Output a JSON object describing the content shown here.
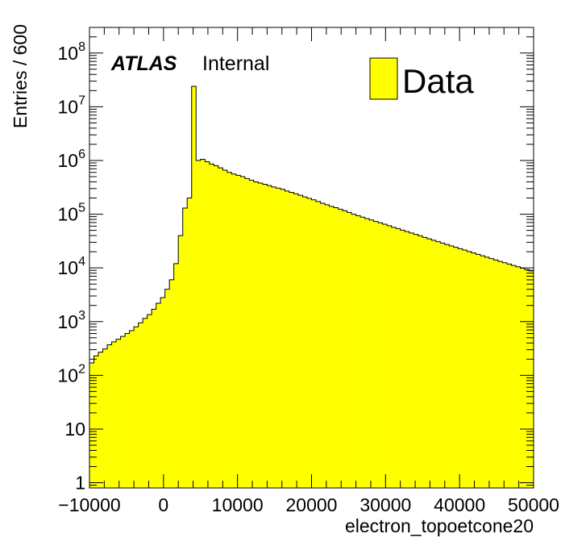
{
  "chart_data": {
    "type": "bar",
    "style": "filled-histogram",
    "xlabel": "electron_topoetcone20",
    "ylabel": "Entries / 600",
    "x_range": [
      -10000,
      50000
    ],
    "bin_width": 600,
    "y_scale": "log",
    "y_range": [
      0.8,
      300000000.0
    ],
    "x_ticks": [
      {
        "value": -10000,
        "label": "−10000"
      },
      {
        "value": 0,
        "label": "0"
      },
      {
        "value": 10000,
        "label": "10000"
      },
      {
        "value": 20000,
        "label": "20000"
      },
      {
        "value": 30000,
        "label": "30000"
      },
      {
        "value": 40000,
        "label": "40000"
      },
      {
        "value": 50000,
        "label": "50000"
      }
    ],
    "y_ticks": [
      {
        "value": 1,
        "base": "1",
        "exp": ""
      },
      {
        "value": 10,
        "base": "10",
        "exp": ""
      },
      {
        "value": 100,
        "base": "10",
        "exp": "2"
      },
      {
        "value": 1000,
        "base": "10",
        "exp": "3"
      },
      {
        "value": 10000,
        "base": "10",
        "exp": "4"
      },
      {
        "value": 100000,
        "base": "10",
        "exp": "5"
      },
      {
        "value": 1000000,
        "base": "10",
        "exp": "6"
      },
      {
        "value": 10000000,
        "base": "10",
        "exp": "7"
      },
      {
        "value": 100000000,
        "base": "10",
        "exp": "8"
      }
    ],
    "label_atlas": "ATLAS",
    "label_status": "Internal",
    "legend": {
      "entry": "Data",
      "position": "top-right",
      "fill": "#ffff00"
    },
    "fill_color": "#ffff00",
    "line_color": "#000000",
    "grid": false,
    "series": [
      {
        "values": [
          170,
          230,
          270,
          310,
          370,
          420,
          470,
          530,
          600,
          680,
          800,
          950,
          1150,
          1350,
          1700,
          2200,
          2800,
          4000,
          6000,
          12000,
          40000,
          130000,
          200000,
          24000000,
          1000000,
          1050000,
          950000,
          860000,
          800000,
          730000,
          660000,
          600000,
          560000,
          530000,
          500000,
          460000,
          430000,
          400000,
          380000,
          360000,
          340000,
          320000,
          305000,
          290000,
          270000,
          255000,
          240000,
          225000,
          210000,
          197000,
          185000,
          172000,
          160000,
          150000,
          140000,
          132000,
          124000,
          116000,
          108000,
          100000,
          94000,
          88000,
          83000,
          78000,
          73000,
          69000,
          65000,
          61000,
          57000,
          54000,
          50500,
          47500,
          44700,
          42000,
          39500,
          37000,
          34800,
          32700,
          30800,
          29000,
          27300,
          25700,
          24200,
          22800,
          21500,
          20200,
          19000,
          17900,
          16800,
          15800,
          14900,
          14000,
          13200,
          12500,
          11800,
          11100,
          10500,
          9900,
          9300,
          8800
        ]
      }
    ]
  }
}
